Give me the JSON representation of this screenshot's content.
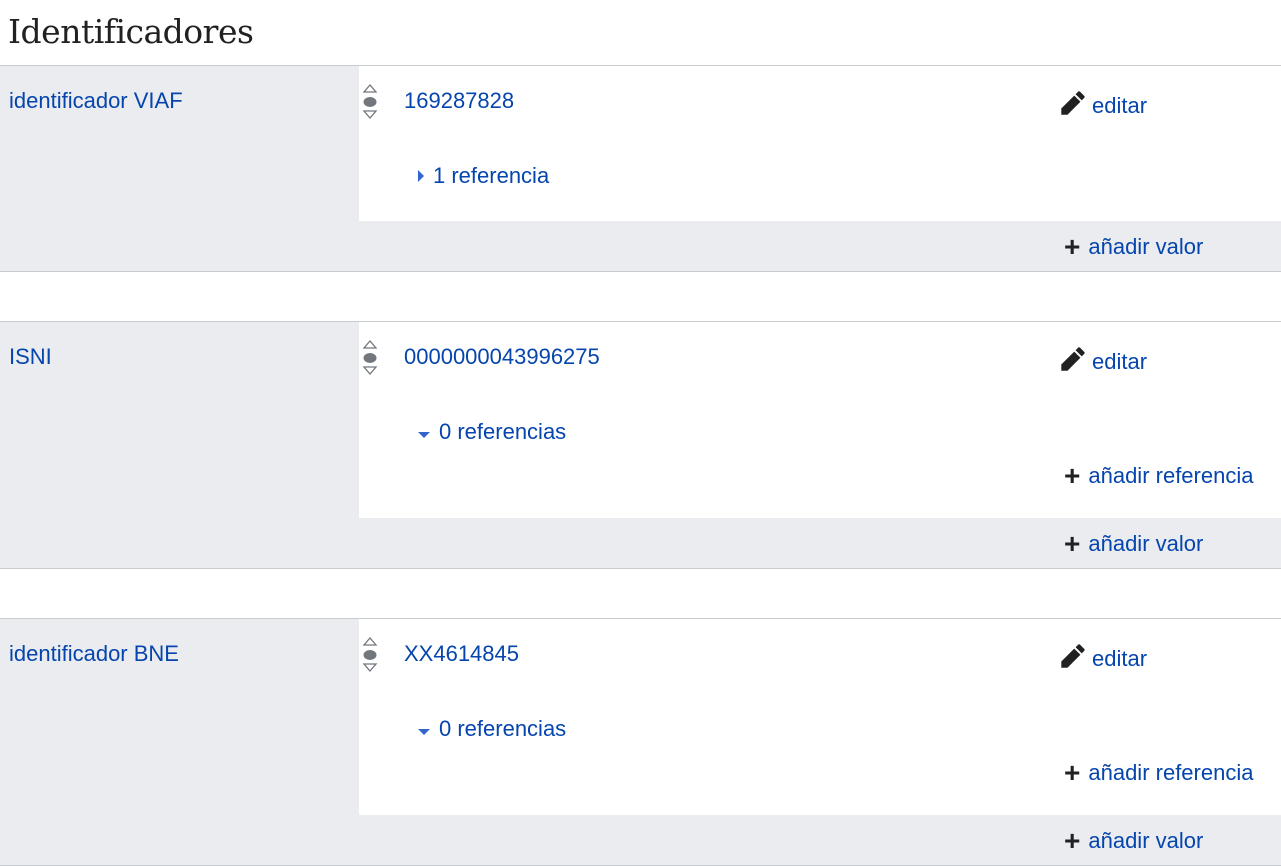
{
  "section_title": "Identificadores",
  "colors": {
    "link": "#0645ad",
    "panel": "#eaecf0",
    "border": "#c8ccd1"
  },
  "icons": {
    "rank": "rank-normal-icon",
    "edit": "pencil-icon",
    "add": "plus-icon",
    "collapsed": "triangle-right-icon",
    "expanded": "triangle-down-icon"
  },
  "labels": {
    "edit": "editar",
    "add_value": "añadir valor",
    "add_reference": "añadir referencia"
  },
  "statements": [
    {
      "property": "identificador VIAF",
      "value": "169287828",
      "references": "1 referencia",
      "expanded": false
    },
    {
      "property": "ISNI",
      "value": "0000000043996275",
      "references": "0 referencias",
      "expanded": true
    },
    {
      "property": "identificador BNE",
      "value": "XX4614845",
      "references": "0 referencias",
      "expanded": true
    }
  ]
}
